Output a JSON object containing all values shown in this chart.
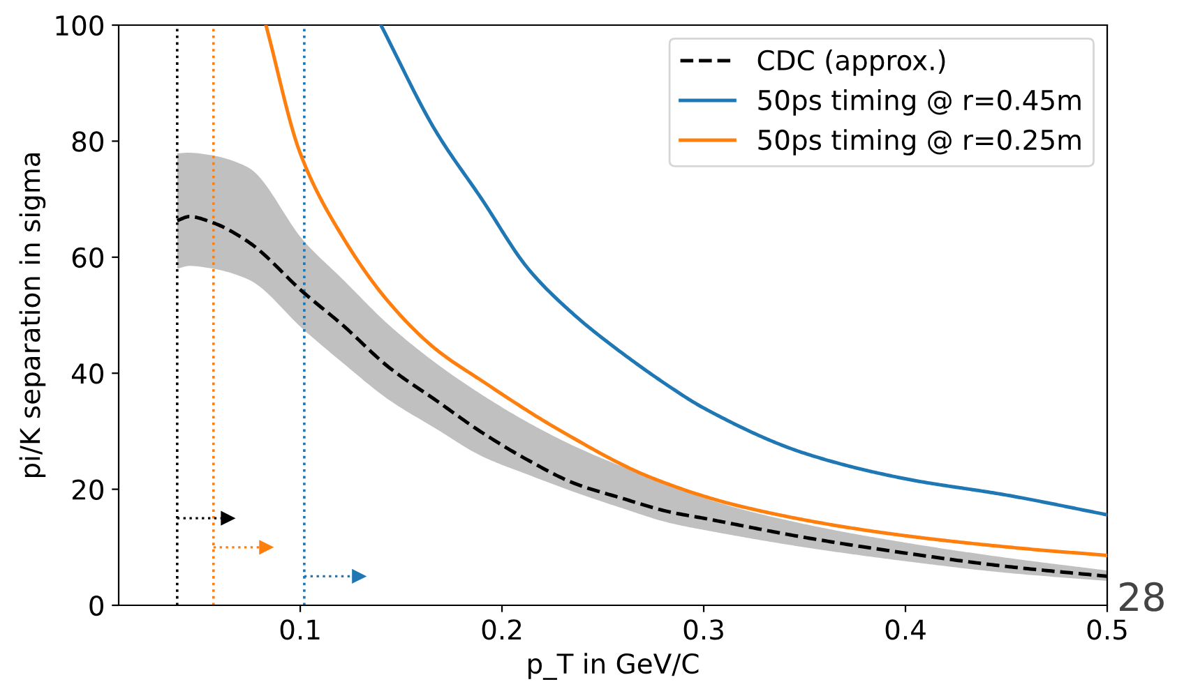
{
  "chart_data": {
    "type": "line",
    "xlabel": "p_T in GeV/C",
    "ylabel": "pi/K separation in sigma",
    "xlim": [
      0.01,
      0.5
    ],
    "xticks": [
      0.1,
      0.2,
      0.3,
      0.4,
      0.5
    ],
    "ylim": [
      0,
      100
    ],
    "yticks": [
      0,
      20,
      40,
      60,
      80,
      100
    ],
    "grid": false,
    "legend": "top right",
    "marker": "none",
    "series": [
      {
        "name": "CDC (approx.)",
        "color": "#000000",
        "line_style": "dashed",
        "x": [
          0.039,
          0.045,
          0.057,
          0.074,
          0.102,
          0.121,
          0.144,
          0.167,
          0.19,
          0.213,
          0.236,
          0.259,
          0.283,
          0.3,
          0.35,
          0.4,
          0.45,
          0.5
        ],
        "values": [
          66.3,
          67,
          65.9,
          62.7,
          53.8,
          48.3,
          41,
          35.4,
          29.8,
          25,
          21,
          18.5,
          16.1,
          15,
          11.7,
          9,
          6.7,
          5
        ],
        "upper": [
          77.9,
          78,
          77.5,
          75.5,
          62.7,
          56.2,
          48.3,
          41.8,
          36.3,
          31.5,
          27.4,
          24,
          21,
          18.5,
          14,
          10.8,
          8.2,
          6
        ],
        "lower": [
          58,
          58.5,
          58,
          56.2,
          47.4,
          41.8,
          35.4,
          30.5,
          25.7,
          22.5,
          19.5,
          16.8,
          14.2,
          13,
          10,
          7.6,
          5.6,
          4.2
        ]
      },
      {
        "name": "50ps timing @ r=0.45m",
        "color": "#1f77b4",
        "line_style": "solid",
        "x": [
          0.14,
          0.1667,
          0.19,
          0.213,
          0.236,
          0.25,
          0.283,
          0.3,
          0.35,
          0.4,
          0.45,
          0.5
        ],
        "values": [
          100,
          82,
          70,
          58,
          50,
          46,
          37.7,
          34,
          26.2,
          21.8,
          19,
          15.6
        ]
      },
      {
        "name": "50ps timing @ r=0.25m",
        "color": "#ff7f0e",
        "line_style": "solid",
        "x": [
          0.083,
          0.1,
          0.121,
          0.144,
          0.167,
          0.19,
          0.227,
          0.274,
          0.319,
          0.389,
          0.458,
          0.5
        ],
        "values": [
          100,
          77.9,
          63.5,
          52.2,
          44.2,
          38.7,
          30.5,
          22,
          17,
          12.5,
          9.8,
          8.6
        ]
      },
      {
        "type": "line",
        "marker": "triangle",
        "color": "#000000",
        "line_style": "dotted",
        "x": [
          0.039,
          0.064
        ],
        "values": [
          15,
          15
        ]
      },
      {
        "type": "line",
        "marker": "triangle",
        "color": "#ff7f0e",
        "line_style": "dotted",
        "x": [
          0.057,
          0.083
        ],
        "values": [
          10,
          10
        ]
      },
      {
        "type": "line",
        "marker": "triangle",
        "color": "#1f77b4",
        "line_style": "dotted",
        "x": [
          0.102,
          0.129
        ],
        "values": [
          5,
          5
        ]
      }
    ],
    "ref_lines": [
      {
        "axis": "x",
        "value": 0.039,
        "color": "#000000",
        "line_style": "dotted"
      },
      {
        "axis": "x",
        "value": 0.057,
        "color": "#ff7f0e",
        "line_style": "dotted"
      },
      {
        "axis": "x",
        "value": 0.102,
        "color": "#1f77b4",
        "line_style": "dotted"
      }
    ],
    "annotations": [
      "28"
    ]
  }
}
